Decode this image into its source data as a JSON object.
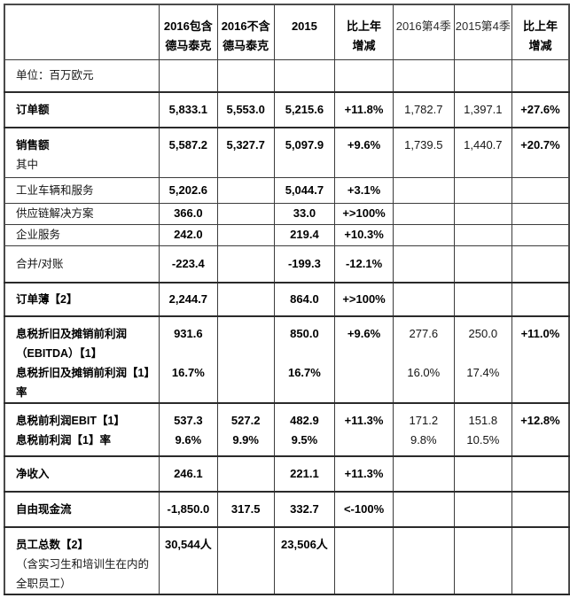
{
  "table": {
    "unit_note": "单位：百万欧元",
    "columns": [
      {
        "id": "metric",
        "lines": [],
        "bold": false
      },
      {
        "id": "y2016-incl-dematic",
        "lines": [
          "2016包含",
          "德马泰克"
        ],
        "bold": true
      },
      {
        "id": "y2016-excl-dematic",
        "lines": [
          "2016不含",
          "德马泰克"
        ],
        "bold": true
      },
      {
        "id": "y2015",
        "lines": [
          "2015"
        ],
        "bold": true
      },
      {
        "id": "yoy-change",
        "lines": [
          "比上年",
          "增减"
        ],
        "bold": true
      },
      {
        "id": "q4-2016",
        "lines": [
          "2016第4季"
        ],
        "bold": false
      },
      {
        "id": "q4-2015",
        "lines": [
          "2015第4季"
        ],
        "bold": false
      },
      {
        "id": "q4-yoy-change",
        "lines": [
          "比上年",
          "增减"
        ],
        "bold": true
      }
    ],
    "rows": [
      {
        "name": "unit-note",
        "label": [
          {
            "t": "单位：百万欧元",
            "b": false
          }
        ],
        "cells": [
          null,
          null,
          null,
          null,
          null,
          null,
          null
        ]
      },
      {
        "name": "order-intake",
        "label": [
          {
            "t": "订单额",
            "b": true
          }
        ],
        "cells": [
          [
            {
              "t": "5,833.1",
              "b": true
            }
          ],
          [
            {
              "t": "5,553.0",
              "b": true
            }
          ],
          [
            {
              "t": "5,215.6",
              "b": true
            }
          ],
          [
            {
              "t": "+11.8%",
              "b": true
            }
          ],
          [
            {
              "t": "1,782.7",
              "b": false
            }
          ],
          [
            {
              "t": "1,397.1",
              "b": false
            }
          ],
          [
            {
              "t": "+27.6%",
              "b": true
            }
          ]
        ]
      },
      {
        "name": "revenue",
        "label": [
          {
            "t": "销售额",
            "b": true
          },
          {
            "t": "其中",
            "b": false
          }
        ],
        "cells": [
          [
            {
              "t": "5,587.2",
              "b": true
            }
          ],
          [
            {
              "t": "5,327.7",
              "b": true
            }
          ],
          [
            {
              "t": "5,097.9",
              "b": true
            }
          ],
          [
            {
              "t": "+9.6%",
              "b": true
            }
          ],
          [
            {
              "t": "1,739.5",
              "b": false
            }
          ],
          [
            {
              "t": "1,440.7",
              "b": false
            }
          ],
          [
            {
              "t": "+20.7%",
              "b": true
            }
          ]
        ]
      },
      {
        "name": "industrial-trucks-services",
        "label": [
          {
            "t": "工业车辆和服务",
            "b": false
          }
        ],
        "cells": [
          [
            {
              "t": "5,202.6",
              "b": true
            }
          ],
          null,
          [
            {
              "t": "5,044.7",
              "b": true
            }
          ],
          [
            {
              "t": "+3.1%",
              "b": true
            }
          ],
          null,
          null,
          null
        ]
      },
      {
        "name": "supply-chain-solutions",
        "label": [
          {
            "t": "供应链解决方案",
            "b": false
          }
        ],
        "cells": [
          [
            {
              "t": "366.0",
              "b": true
            }
          ],
          null,
          [
            {
              "t": "33.0",
              "b": true
            }
          ],
          [
            {
              "t": "+>100%",
              "b": true
            }
          ],
          null,
          null,
          null
        ]
      },
      {
        "name": "corporate-services",
        "label": [
          {
            "t": "企业服务",
            "b": false
          }
        ],
        "cells": [
          [
            {
              "t": "242.0",
              "b": true
            }
          ],
          null,
          [
            {
              "t": "219.4",
              "b": true
            }
          ],
          [
            {
              "t": "+10.3%",
              "b": true
            }
          ],
          null,
          null,
          null
        ]
      },
      {
        "name": "consolidation-reconciliation",
        "label": [
          {
            "t": "合并/对账",
            "b": false
          }
        ],
        "cells": [
          [
            {
              "t": "-223.4",
              "b": true
            }
          ],
          null,
          [
            {
              "t": "-199.3",
              "b": true
            }
          ],
          [
            {
              "t": "-12.1%",
              "b": true
            }
          ],
          null,
          null,
          null
        ]
      },
      {
        "name": "order-book",
        "label": [
          {
            "t": "订单薄【2】",
            "b": true
          }
        ],
        "cells": [
          [
            {
              "t": "2,244.7",
              "b": true
            }
          ],
          null,
          [
            {
              "t": "864.0",
              "b": true
            }
          ],
          [
            {
              "t": "+>100%",
              "b": true
            }
          ],
          null,
          null,
          null
        ]
      },
      {
        "name": "ebitda",
        "label": [
          {
            "t": "息税折旧及摊销前利润",
            "b": true
          },
          {
            "t": "（EBITDA）【1】",
            "b": true
          },
          {
            "t": "息税折旧及摊销前利润【1】",
            "b": true
          },
          {
            "t": "率",
            "b": true
          }
        ],
        "cells": [
          [
            {
              "t": "931.6",
              "b": true
            },
            {
              "t": "",
              "b": false
            },
            {
              "t": "16.7%",
              "b": true
            }
          ],
          null,
          [
            {
              "t": "850.0",
              "b": true
            },
            {
              "t": "",
              "b": false
            },
            {
              "t": "16.7%",
              "b": true
            }
          ],
          [
            {
              "t": "+9.6%",
              "b": true
            }
          ],
          [
            {
              "t": "277.6",
              "b": false
            },
            {
              "t": "",
              "b": false
            },
            {
              "t": "16.0%",
              "b": false
            }
          ],
          [
            {
              "t": "250.0",
              "b": false
            },
            {
              "t": "",
              "b": false
            },
            {
              "t": "17.4%",
              "b": false
            }
          ],
          [
            {
              "t": "+11.0%",
              "b": true
            }
          ]
        ]
      },
      {
        "name": "ebit",
        "label": [
          {
            "t": "息税前利润EBIT【1】",
            "b": true
          },
          {
            "t": "息税前利润【1】率",
            "b": true
          }
        ],
        "cells": [
          [
            {
              "t": "537.3",
              "b": true
            },
            {
              "t": "9.6%",
              "b": true
            }
          ],
          [
            {
              "t": "527.2",
              "b": true
            },
            {
              "t": "9.9%",
              "b": true
            }
          ],
          [
            {
              "t": "482.9",
              "b": true
            },
            {
              "t": "9.5%",
              "b": true
            }
          ],
          [
            {
              "t": "+11.3%",
              "b": true
            }
          ],
          [
            {
              "t": "171.2",
              "b": false
            },
            {
              "t": "9.8%",
              "b": false
            }
          ],
          [
            {
              "t": "151.8",
              "b": false
            },
            {
              "t": "10.5%",
              "b": false
            }
          ],
          [
            {
              "t": "+12.8%",
              "b": true
            }
          ]
        ]
      },
      {
        "name": "net-income",
        "label": [
          {
            "t": "净收入",
            "b": true
          }
        ],
        "cells": [
          [
            {
              "t": "246.1",
              "b": true
            }
          ],
          null,
          [
            {
              "t": "221.1",
              "b": true
            }
          ],
          [
            {
              "t": "+11.3%",
              "b": true
            }
          ],
          null,
          null,
          null
        ]
      },
      {
        "name": "free-cash-flow",
        "label": [
          {
            "t": "自由现金流",
            "b": true
          }
        ],
        "cells": [
          [
            {
              "t": "-1,850.0",
              "b": true
            }
          ],
          [
            {
              "t": "317.5",
              "b": true
            }
          ],
          [
            {
              "t": "332.7",
              "b": true
            }
          ],
          [
            {
              "t": "<-100%",
              "b": true
            }
          ],
          null,
          null,
          null
        ]
      },
      {
        "name": "total-employees",
        "label": [
          {
            "t": "员工总数【2】",
            "b": true
          },
          {
            "t": "（含实习生和培训生在内的",
            "b": false
          },
          {
            "t": "全职员工）",
            "b": false
          }
        ],
        "cells": [
          [
            {
              "t": "30,544人",
              "b": true
            }
          ],
          null,
          [
            {
              "t": "23,506人",
              "b": true
            }
          ],
          null,
          null,
          null,
          null
        ]
      }
    ]
  }
}
